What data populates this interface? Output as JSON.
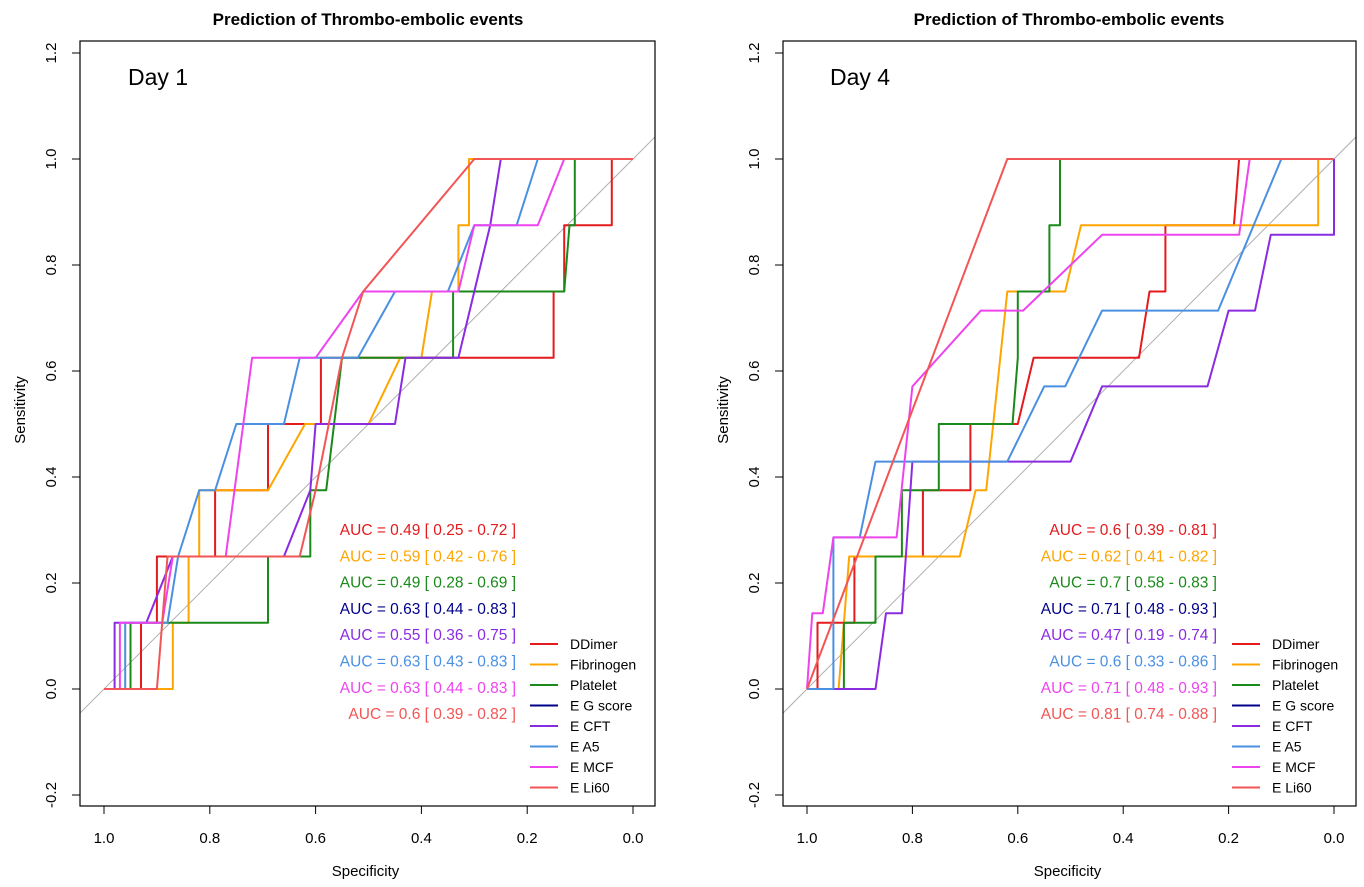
{
  "chart_data": [
    {
      "type": "line",
      "title": "Prediction of Thrombo-embolic events",
      "panel_label": "Day 1",
      "xlabel": "Specificity",
      "ylabel": "Sensitivity",
      "xlim": [
        1.0,
        0.0
      ],
      "ylim": [
        -0.2,
        1.2
      ],
      "x_ticks": [
        "1.0",
        "0.8",
        "0.6",
        "0.4",
        "0.2",
        "0.0"
      ],
      "y_ticks": [
        "-0.2",
        "0.0",
        "0.2",
        "0.4",
        "0.6",
        "0.8",
        "1.0",
        "1.2"
      ],
      "grid": false,
      "legend_position": "bottom-right",
      "series": [
        {
          "name": "DDimer",
          "color": "#e41a1c",
          "auc_label": "AUC = 0.49 [ 0.25 - 0.72 ]",
          "points": [
            [
              1,
              0
            ],
            [
              0.93,
              0
            ],
            [
              0.93,
              0.125
            ],
            [
              0.9,
              0.125
            ],
            [
              0.9,
              0.25
            ],
            [
              0.79,
              0.25
            ],
            [
              0.79,
              0.375
            ],
            [
              0.69,
              0.375
            ],
            [
              0.69,
              0.5
            ],
            [
              0.59,
              0.5
            ],
            [
              0.59,
              0.625
            ],
            [
              0.15,
              0.625
            ],
            [
              0.15,
              0.75
            ],
            [
              0.13,
              0.75
            ],
            [
              0.13,
              0.875
            ],
            [
              0.04,
              0.875
            ],
            [
              0.04,
              1
            ],
            [
              0,
              1
            ]
          ]
        },
        {
          "name": "Fibrinogen",
          "color": "#ffa500",
          "auc_label": "AUC = 0.59 [ 0.42 - 0.76 ]",
          "points": [
            [
              1,
              0
            ],
            [
              0.87,
              0
            ],
            [
              0.87,
              0.125
            ],
            [
              0.84,
              0.125
            ],
            [
              0.84,
              0.25
            ],
            [
              0.82,
              0.25
            ],
            [
              0.82,
              0.375
            ],
            [
              0.69,
              0.375
            ],
            [
              0.62,
              0.5
            ],
            [
              0.58,
              0.5
            ],
            [
              0.55,
              0.5
            ],
            [
              0.5,
              0.5
            ],
            [
              0.44,
              0.625
            ],
            [
              0.4,
              0.625
            ],
            [
              0.38,
              0.75
            ],
            [
              0.33,
              0.75
            ],
            [
              0.33,
              0.875
            ],
            [
              0.31,
              0.875
            ],
            [
              0.31,
              1
            ],
            [
              0,
              1
            ]
          ]
        },
        {
          "name": "Platelet",
          "color": "#1a8a1a",
          "auc_label": "AUC = 0.49 [ 0.28 - 0.69 ]",
          "points": [
            [
              1,
              0
            ],
            [
              0.95,
              0
            ],
            [
              0.95,
              0.125
            ],
            [
              0.69,
              0.125
            ],
            [
              0.69,
              0.25
            ],
            [
              0.61,
              0.25
            ],
            [
              0.61,
              0.375
            ],
            [
              0.58,
              0.375
            ],
            [
              0.55,
              0.625
            ],
            [
              0.34,
              0.625
            ],
            [
              0.34,
              0.75
            ],
            [
              0.13,
              0.75
            ],
            [
              0.12,
              0.875
            ],
            [
              0.11,
              0.875
            ],
            [
              0.11,
              1
            ],
            [
              0,
              1
            ]
          ]
        },
        {
          "name": "E G score",
          "color": "#00008b",
          "auc_label": "AUC = 0.63 [ 0.44 - 0.83 ]",
          "points": []
        },
        {
          "name": "E CFT",
          "color": "#8a2be2",
          "auc_label": "AUC = 0.55 [ 0.36 - 0.75 ]",
          "points": [
            [
              1,
              0
            ],
            [
              0.98,
              0
            ],
            [
              0.98,
              0.125
            ],
            [
              0.92,
              0.125
            ],
            [
              0.87,
              0.25
            ],
            [
              0.66,
              0.25
            ],
            [
              0.61,
              0.375
            ],
            [
              0.6,
              0.5
            ],
            [
              0.45,
              0.5
            ],
            [
              0.43,
              0.625
            ],
            [
              0.33,
              0.625
            ],
            [
              0.3,
              0.75
            ],
            [
              0.27,
              0.875
            ],
            [
              0.25,
              1
            ],
            [
              0,
              1
            ]
          ]
        },
        {
          "name": "E A5",
          "color": "#4a90e2",
          "auc_label": "AUC = 0.63 [ 0.43 - 0.83 ]",
          "points": [
            [
              1,
              0
            ],
            [
              0.96,
              0
            ],
            [
              0.96,
              0.125
            ],
            [
              0.88,
              0.125
            ],
            [
              0.86,
              0.25
            ],
            [
              0.82,
              0.375
            ],
            [
              0.79,
              0.375
            ],
            [
              0.75,
              0.5
            ],
            [
              0.69,
              0.5
            ],
            [
              0.66,
              0.5
            ],
            [
              0.63,
              0.625
            ],
            [
              0.52,
              0.625
            ],
            [
              0.45,
              0.75
            ],
            [
              0.35,
              0.75
            ],
            [
              0.3,
              0.875
            ],
            [
              0.22,
              0.875
            ],
            [
              0.18,
              1
            ],
            [
              0,
              1
            ]
          ]
        },
        {
          "name": "E MCF",
          "color": "#ee44ee",
          "auc_label": "AUC = 0.63 [ 0.44 - 0.83 ]",
          "points": [
            [
              1,
              0
            ],
            [
              0.97,
              0
            ],
            [
              0.97,
              0.125
            ],
            [
              0.89,
              0.125
            ],
            [
              0.87,
              0.25
            ],
            [
              0.77,
              0.25
            ],
            [
              0.72,
              0.625
            ],
            [
              0.6,
              0.625
            ],
            [
              0.51,
              0.75
            ],
            [
              0.33,
              0.75
            ],
            [
              0.3,
              0.875
            ],
            [
              0.18,
              0.875
            ],
            [
              0.13,
              1
            ],
            [
              0,
              1
            ]
          ]
        },
        {
          "name": "E Li60",
          "color": "#f25555",
          "auc_label": "AUC = 0.6 [ 0.39 - 0.82 ]",
          "points": [
            [
              1,
              0
            ],
            [
              0.9,
              0
            ],
            [
              0.88,
              0.25
            ],
            [
              0.63,
              0.25
            ],
            [
              0.6,
              0.375
            ],
            [
              0.55,
              0.625
            ],
            [
              0.51,
              0.75
            ],
            [
              0.3,
              1
            ],
            [
              0,
              1
            ]
          ]
        }
      ]
    },
    {
      "type": "line",
      "title": "Prediction of Thrombo-embolic events",
      "panel_label": "Day 4",
      "xlabel": "Specificity",
      "ylabel": "Sensitivity",
      "xlim": [
        1.0,
        0.0
      ],
      "ylim": [
        -0.2,
        1.2
      ],
      "x_ticks": [
        "1.0",
        "0.8",
        "0.6",
        "0.4",
        "0.2",
        "0.0"
      ],
      "y_ticks": [
        "-0.2",
        "0.0",
        "0.2",
        "0.4",
        "0.6",
        "0.8",
        "1.0",
        "1.2"
      ],
      "grid": false,
      "legend_position": "bottom-right",
      "series": [
        {
          "name": "DDimer",
          "color": "#e41a1c",
          "auc_label": "AUC = 0.6 [ 0.39 - 0.81 ]",
          "points": [
            [
              1,
              0
            ],
            [
              0.98,
              0
            ],
            [
              0.98,
              0.125
            ],
            [
              0.91,
              0.125
            ],
            [
              0.91,
              0.25
            ],
            [
              0.78,
              0.25
            ],
            [
              0.78,
              0.375
            ],
            [
              0.69,
              0.375
            ],
            [
              0.69,
              0.5
            ],
            [
              0.6,
              0.5
            ],
            [
              0.57,
              0.625
            ],
            [
              0.37,
              0.625
            ],
            [
              0.35,
              0.75
            ],
            [
              0.32,
              0.75
            ],
            [
              0.32,
              0.875
            ],
            [
              0.19,
              0.875
            ],
            [
              0.18,
              1
            ],
            [
              0,
              1
            ]
          ]
        },
        {
          "name": "Fibrinogen",
          "color": "#ffa500",
          "auc_label": "AUC = 0.62 [ 0.41 - 0.82 ]",
          "points": [
            [
              1,
              0
            ],
            [
              0.94,
              0
            ],
            [
              0.92,
              0.25
            ],
            [
              0.71,
              0.25
            ],
            [
              0.68,
              0.375
            ],
            [
              0.66,
              0.375
            ],
            [
              0.62,
              0.75
            ],
            [
              0.51,
              0.75
            ],
            [
              0.48,
              0.875
            ],
            [
              0.03,
              0.875
            ],
            [
              0.03,
              1
            ],
            [
              0,
              1
            ]
          ]
        },
        {
          "name": "Platelet",
          "color": "#1a8a1a",
          "auc_label": "AUC = 0.7 [ 0.58 - 0.83 ]",
          "points": [
            [
              1,
              0
            ],
            [
              0.93,
              0
            ],
            [
              0.93,
              0.125
            ],
            [
              0.87,
              0.125
            ],
            [
              0.87,
              0.25
            ],
            [
              0.82,
              0.25
            ],
            [
              0.82,
              0.375
            ],
            [
              0.75,
              0.375
            ],
            [
              0.75,
              0.5
            ],
            [
              0.61,
              0.5
            ],
            [
              0.6,
              0.625
            ],
            [
              0.6,
              0.75
            ],
            [
              0.54,
              0.75
            ],
            [
              0.54,
              0.875
            ],
            [
              0.52,
              0.875
            ],
            [
              0.52,
              1
            ],
            [
              0,
              1
            ]
          ]
        },
        {
          "name": "E G score",
          "color": "#00008b",
          "auc_label": "AUC = 0.71 [ 0.48 - 0.93 ]",
          "points": []
        },
        {
          "name": "E CFT",
          "color": "#8a2be2",
          "auc_label": "AUC = 0.47 [ 0.19 - 0.74 ]",
          "points": [
            [
              1,
              0
            ],
            [
              0.95,
              0
            ],
            [
              0.95,
              0
            ],
            [
              0.87,
              0
            ],
            [
              0.85,
              0.143
            ],
            [
              0.82,
              0.143
            ],
            [
              0.8,
              0.429
            ],
            [
              0.5,
              0.429
            ],
            [
              0.44,
              0.571
            ],
            [
              0.24,
              0.571
            ],
            [
              0.2,
              0.714
            ],
            [
              0.15,
              0.714
            ],
            [
              0.12,
              0.857
            ],
            [
              0,
              0.857
            ],
            [
              0,
              1
            ]
          ]
        },
        {
          "name": "E A5",
          "color": "#4a90e2",
          "auc_label": "AUC = 0.6 [ 0.33 - 0.86 ]",
          "points": [
            [
              1,
              0
            ],
            [
              0.95,
              0
            ],
            [
              0.95,
              0.286
            ],
            [
              0.9,
              0.286
            ],
            [
              0.87,
              0.429
            ],
            [
              0.62,
              0.429
            ],
            [
              0.55,
              0.571
            ],
            [
              0.51,
              0.571
            ],
            [
              0.44,
              0.714
            ],
            [
              0.22,
              0.714
            ],
            [
              0.1,
              1
            ],
            [
              0,
              1
            ]
          ]
        },
        {
          "name": "E MCF",
          "color": "#ee44ee",
          "auc_label": "AUC = 0.71 [ 0.48 - 0.93 ]",
          "points": [
            [
              1,
              0
            ],
            [
              0.99,
              0.143
            ],
            [
              0.97,
              0.143
            ],
            [
              0.95,
              0.286
            ],
            [
              0.83,
              0.286
            ],
            [
              0.8,
              0.571
            ],
            [
              0.67,
              0.714
            ],
            [
              0.59,
              0.714
            ],
            [
              0.44,
              0.857
            ],
            [
              0.18,
              0.857
            ],
            [
              0.16,
              1
            ],
            [
              0,
              1
            ]
          ]
        },
        {
          "name": "E Li60",
          "color": "#f25555",
          "auc_label": "AUC = 0.81 [ 0.74 - 0.88 ]",
          "points": [
            [
              1,
              0
            ],
            [
              0.62,
              1
            ],
            [
              0,
              1
            ]
          ]
        }
      ]
    }
  ]
}
